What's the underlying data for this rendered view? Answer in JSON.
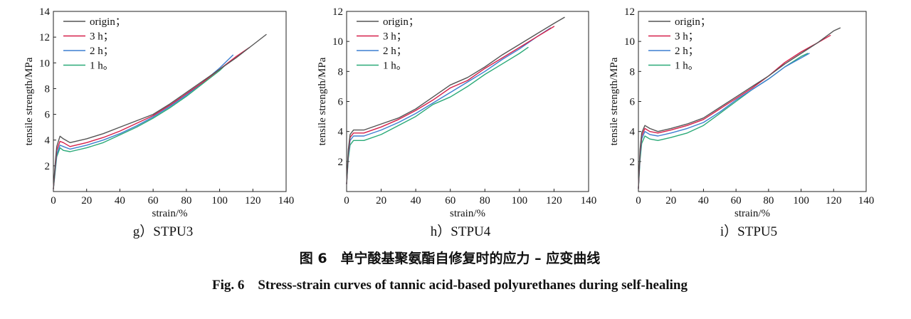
{
  "chart_data": [
    {
      "type": "line",
      "panel_label": "g）STPU3",
      "xlabel": "strain/%",
      "ylabel": "tensile strength/MPa",
      "xlim": [
        0,
        140
      ],
      "ylim": [
        0,
        14
      ],
      "xticks": [
        0,
        20,
        40,
        60,
        80,
        100,
        120,
        140
      ],
      "yticks": [
        2,
        4,
        6,
        8,
        10,
        12,
        14
      ],
      "grid": false,
      "legend_position": "top-left",
      "series": [
        {
          "name": "origin；",
          "color": "#555555",
          "x": [
            0,
            1,
            2,
            4,
            6,
            10,
            20,
            30,
            40,
            50,
            60,
            70,
            80,
            90,
            100,
            110,
            120,
            128
          ],
          "y": [
            0.2,
            2.0,
            3.5,
            4.3,
            4.1,
            3.8,
            4.1,
            4.5,
            5.0,
            5.5,
            6.0,
            6.8,
            7.7,
            8.6,
            9.5,
            10.4,
            11.4,
            12.2
          ]
        },
        {
          "name": "3 h；",
          "color": "#d6204a",
          "x": [
            0,
            1,
            2,
            4,
            6,
            10,
            20,
            30,
            40,
            50,
            60,
            70,
            80,
            90,
            100,
            110,
            118
          ],
          "y": [
            0.2,
            1.8,
            3.2,
            3.9,
            3.8,
            3.5,
            3.8,
            4.2,
            4.7,
            5.3,
            5.9,
            6.7,
            7.6,
            8.5,
            9.5,
            10.5,
            11.2
          ]
        },
        {
          "name": "2 h；",
          "color": "#3d7fd0",
          "x": [
            0,
            1,
            2,
            4,
            6,
            10,
            20,
            30,
            40,
            50,
            60,
            70,
            80,
            90,
            100,
            108
          ],
          "y": [
            0.2,
            1.6,
            2.9,
            3.6,
            3.5,
            3.3,
            3.6,
            4.0,
            4.5,
            5.1,
            5.8,
            6.6,
            7.5,
            8.5,
            9.6,
            10.6
          ]
        },
        {
          "name": "1 h。",
          "color": "#2aaa78",
          "x": [
            0,
            1,
            2,
            4,
            6,
            10,
            20,
            30,
            40,
            50,
            60,
            70,
            80,
            90,
            100,
            104
          ],
          "y": [
            0.2,
            1.4,
            2.7,
            3.4,
            3.2,
            3.1,
            3.4,
            3.8,
            4.4,
            5.0,
            5.7,
            6.5,
            7.4,
            8.4,
            9.4,
            9.9
          ]
        }
      ]
    },
    {
      "type": "line",
      "panel_label": "h）STPU4",
      "xlabel": "strain/%",
      "ylabel": "tensile strength/MPa",
      "xlim": [
        0,
        140
      ],
      "ylim": [
        0,
        12
      ],
      "xticks": [
        0,
        20,
        40,
        60,
        80,
        100,
        120,
        140
      ],
      "yticks": [
        2,
        4,
        6,
        8,
        10,
        12
      ],
      "grid": false,
      "legend_position": "top-left",
      "series": [
        {
          "name": "origin；",
          "color": "#555555",
          "x": [
            0,
            1,
            2,
            4,
            10,
            20,
            30,
            40,
            50,
            60,
            70,
            80,
            90,
            100,
            110,
            120,
            126
          ],
          "y": [
            0.5,
            2.8,
            3.8,
            4.1,
            4.1,
            4.5,
            4.9,
            5.5,
            6.3,
            7.1,
            7.6,
            8.3,
            9.1,
            9.8,
            10.5,
            11.2,
            11.6
          ]
        },
        {
          "name": "3 h；",
          "color": "#d6204a",
          "x": [
            0,
            1,
            2,
            4,
            10,
            20,
            30,
            40,
            50,
            60,
            70,
            80,
            90,
            100,
            110,
            120
          ],
          "y": [
            0.5,
            2.6,
            3.6,
            3.9,
            3.9,
            4.3,
            4.8,
            5.4,
            6.1,
            6.9,
            7.4,
            8.2,
            8.9,
            9.6,
            10.3,
            11.0
          ]
        },
        {
          "name": "2 h；",
          "color": "#3d7fd0",
          "x": [
            0,
            1,
            2,
            4,
            10,
            20,
            30,
            40,
            50,
            60,
            70,
            80,
            90,
            100,
            110,
            118
          ],
          "y": [
            0.5,
            2.4,
            3.4,
            3.7,
            3.7,
            4.1,
            4.6,
            5.2,
            5.9,
            6.6,
            7.3,
            8.0,
            8.8,
            9.5,
            10.3,
            10.9
          ]
        },
        {
          "name": "1 h。",
          "color": "#2aaa78",
          "x": [
            0,
            1,
            2,
            4,
            10,
            20,
            30,
            40,
            50,
            60,
            70,
            80,
            90,
            100,
            105
          ],
          "y": [
            0.5,
            2.2,
            3.1,
            3.4,
            3.4,
            3.8,
            4.4,
            5.0,
            5.8,
            6.3,
            7.0,
            7.8,
            8.5,
            9.2,
            9.6
          ]
        }
      ]
    },
    {
      "type": "line",
      "panel_label": "i）STPU5",
      "xlabel": "strain/%",
      "ylabel": "tensile strength/MPa",
      "xlim": [
        0,
        140
      ],
      "ylim": [
        0,
        12
      ],
      "xticks": [
        0,
        20,
        40,
        60,
        80,
        100,
        120,
        140
      ],
      "yticks": [
        2,
        4,
        6,
        8,
        10,
        12
      ],
      "grid": false,
      "legend_position": "top-left",
      "series": [
        {
          "name": "origin；",
          "color": "#555555",
          "x": [
            0,
            1,
            2,
            4,
            7,
            12,
            20,
            30,
            40,
            50,
            60,
            70,
            80,
            90,
            100,
            110,
            120,
            124
          ],
          "y": [
            0.2,
            2.8,
            3.9,
            4.4,
            4.2,
            4.0,
            4.2,
            4.5,
            4.9,
            5.6,
            6.3,
            7.0,
            7.7,
            8.5,
            9.2,
            9.9,
            10.7,
            10.9
          ]
        },
        {
          "name": "3 h；",
          "color": "#d6204a",
          "x": [
            0,
            1,
            2,
            4,
            7,
            12,
            20,
            30,
            40,
            50,
            60,
            70,
            80,
            90,
            100,
            110,
            118
          ],
          "y": [
            0.2,
            2.6,
            3.7,
            4.2,
            4.0,
            3.9,
            4.1,
            4.4,
            4.8,
            5.5,
            6.2,
            6.9,
            7.7,
            8.6,
            9.3,
            9.9,
            10.4
          ]
        },
        {
          "name": "2 h；",
          "color": "#3d7fd0",
          "x": [
            0,
            1,
            2,
            4,
            7,
            12,
            20,
            30,
            40,
            50,
            60,
            70,
            80,
            90,
            100,
            105
          ],
          "y": [
            0.2,
            2.4,
            3.5,
            4.0,
            3.8,
            3.7,
            3.9,
            4.2,
            4.6,
            5.3,
            6.1,
            6.8,
            7.5,
            8.3,
            8.9,
            9.2
          ]
        },
        {
          "name": "1 h。",
          "color": "#2aaa78",
          "x": [
            0,
            1,
            2,
            4,
            7,
            12,
            20,
            30,
            40,
            50,
            60,
            70,
            80,
            90,
            100,
            104
          ],
          "y": [
            0.2,
            2.1,
            3.2,
            3.7,
            3.5,
            3.4,
            3.6,
            3.9,
            4.4,
            5.2,
            6.0,
            6.8,
            7.5,
            8.3,
            9.0,
            9.2
          ]
        }
      ]
    }
  ],
  "caption": {
    "zh": "图 6　单宁酸基聚氨酯自修复时的应力 – 应变曲线",
    "en": "Fig. 6　Stress-strain curves of tannic acid-based polyurethanes during self-healing"
  }
}
